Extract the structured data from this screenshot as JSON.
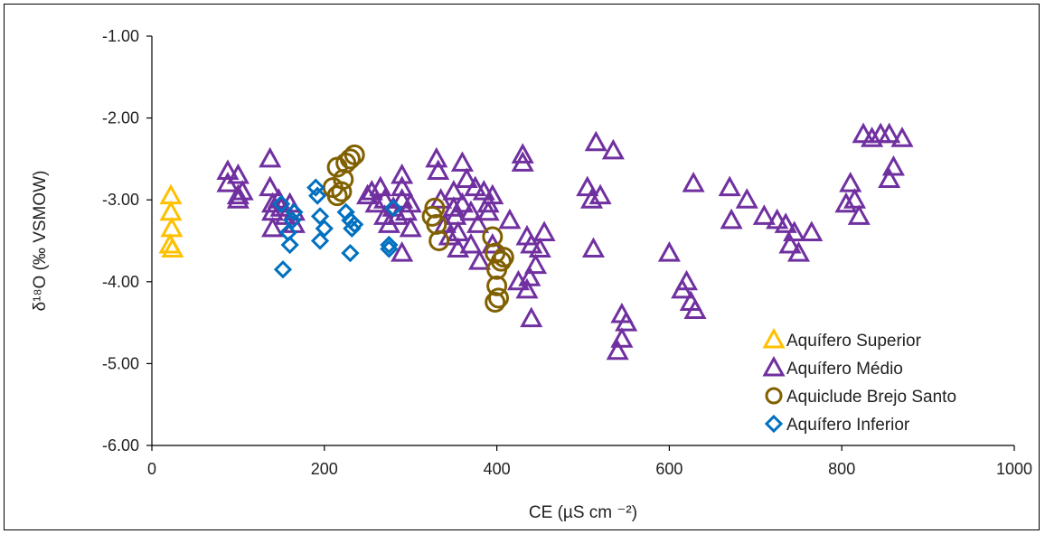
{
  "chart_data": {
    "type": "scatter",
    "xlabel": "CE (µS cm ⁻²)",
    "ylabel": "δ¹⁸O (‰ VSMOW)",
    "xlim": [
      0,
      1000
    ],
    "ylim": [
      -6,
      -1
    ],
    "xticks": [
      "0",
      "200",
      "400",
      "600",
      "800",
      "1000"
    ],
    "yticks": [
      "-1.00",
      "-2.00",
      "-3.00",
      "-4.00",
      "-5.00",
      "-6.00"
    ],
    "grid": false,
    "legend_position": "bottom-right",
    "series": [
      {
        "name": "Aquífero Superior",
        "marker": "triangle",
        "color": "#FFC000",
        "points": [
          [
            22,
            -2.95
          ],
          [
            22,
            -3.15
          ],
          [
            23,
            -3.35
          ],
          [
            21,
            -3.55
          ],
          [
            24,
            -3.6
          ]
        ]
      },
      {
        "name": "Aquífero Médio",
        "marker": "triangle",
        "color": "#7030A0",
        "points": [
          [
            88,
            -2.65
          ],
          [
            88,
            -2.8
          ],
          [
            100,
            -2.7
          ],
          [
            100,
            -2.95
          ],
          [
            100,
            -3.0
          ],
          [
            105,
            -2.9
          ],
          [
            137,
            -2.5
          ],
          [
            137,
            -2.85
          ],
          [
            140,
            -3.05
          ],
          [
            140,
            -3.15
          ],
          [
            140,
            -3.35
          ],
          [
            147,
            -3.0
          ],
          [
            150,
            -3.1
          ],
          [
            155,
            -3.2
          ],
          [
            160,
            -3.05
          ],
          [
            165,
            -3.15
          ],
          [
            165,
            -3.3
          ],
          [
            250,
            -2.95
          ],
          [
            255,
            -2.9
          ],
          [
            260,
            -3.05
          ],
          [
            265,
            -2.85
          ],
          [
            270,
            -3.0
          ],
          [
            270,
            -3.2
          ],
          [
            275,
            -3.3
          ],
          [
            280,
            -3.1
          ],
          [
            285,
            -3.2
          ],
          [
            290,
            -2.7
          ],
          [
            290,
            -2.85
          ],
          [
            290,
            -3.0
          ],
          [
            290,
            -3.65
          ],
          [
            295,
            -3.15
          ],
          [
            300,
            -3.05
          ],
          [
            300,
            -3.35
          ],
          [
            330,
            -2.5
          ],
          [
            332,
            -2.65
          ],
          [
            335,
            -3.0
          ],
          [
            340,
            -3.3
          ],
          [
            345,
            -3.45
          ],
          [
            350,
            -2.9
          ],
          [
            350,
            -3.1
          ],
          [
            352,
            -3.2
          ],
          [
            355,
            -3.4
          ],
          [
            355,
            -3.6
          ],
          [
            360,
            -2.55
          ],
          [
            360,
            -3.05
          ],
          [
            365,
            -2.75
          ],
          [
            370,
            -3.15
          ],
          [
            370,
            -3.55
          ],
          [
            375,
            -2.85
          ],
          [
            378,
            -3.3
          ],
          [
            380,
            -3.75
          ],
          [
            385,
            -2.9
          ],
          [
            390,
            -3.05
          ],
          [
            390,
            -3.15
          ],
          [
            395,
            -2.95
          ],
          [
            395,
            -3.55
          ],
          [
            415,
            -3.25
          ],
          [
            425,
            -4.0
          ],
          [
            430,
            -2.45
          ],
          [
            430,
            -2.55
          ],
          [
            435,
            -3.45
          ],
          [
            435,
            -4.1
          ],
          [
            438,
            -3.95
          ],
          [
            440,
            -3.55
          ],
          [
            440,
            -4.45
          ],
          [
            445,
            -3.8
          ],
          [
            450,
            -3.6
          ],
          [
            455,
            -3.4
          ],
          [
            505,
            -2.85
          ],
          [
            510,
            -3.0
          ],
          [
            512,
            -3.6
          ],
          [
            515,
            -2.3
          ],
          [
            520,
            -2.95
          ],
          [
            535,
            -2.4
          ],
          [
            540,
            -4.85
          ],
          [
            545,
            -4.4
          ],
          [
            545,
            -4.7
          ],
          [
            550,
            -4.5
          ],
          [
            600,
            -3.65
          ],
          [
            615,
            -4.1
          ],
          [
            620,
            -4.0
          ],
          [
            625,
            -4.25
          ],
          [
            630,
            -4.35
          ],
          [
            628,
            -2.8
          ],
          [
            670,
            -2.85
          ],
          [
            672,
            -3.25
          ],
          [
            690,
            -3.0
          ],
          [
            710,
            -3.2
          ],
          [
            725,
            -3.25
          ],
          [
            735,
            -3.3
          ],
          [
            740,
            -3.55
          ],
          [
            745,
            -3.4
          ],
          [
            750,
            -3.65
          ],
          [
            765,
            -3.4
          ],
          [
            805,
            -3.05
          ],
          [
            810,
            -2.8
          ],
          [
            815,
            -3.0
          ],
          [
            820,
            -3.2
          ],
          [
            825,
            -2.2
          ],
          [
            835,
            -2.25
          ],
          [
            845,
            -2.2
          ],
          [
            855,
            -2.2
          ],
          [
            855,
            -2.75
          ],
          [
            860,
            -2.6
          ],
          [
            870,
            -2.25
          ]
        ]
      },
      {
        "name": "Aquiclude Brejo Santo",
        "marker": "circle",
        "color": "#806000",
        "points": [
          [
            210,
            -2.85
          ],
          [
            215,
            -2.95
          ],
          [
            215,
            -2.6
          ],
          [
            220,
            -2.9
          ],
          [
            222,
            -2.75
          ],
          [
            225,
            -2.55
          ],
          [
            230,
            -2.5
          ],
          [
            235,
            -2.45
          ],
          [
            325,
            -3.2
          ],
          [
            328,
            -3.1
          ],
          [
            330,
            -3.3
          ],
          [
            333,
            -3.5
          ],
          [
            395,
            -3.45
          ],
          [
            398,
            -3.65
          ],
          [
            400,
            -3.85
          ],
          [
            400,
            -4.05
          ],
          [
            402,
            -4.2
          ],
          [
            398,
            -4.25
          ],
          [
            405,
            -3.75
          ],
          [
            408,
            -3.7
          ]
        ]
      },
      {
        "name": "Aquífero Inferior",
        "marker": "diamond",
        "color": "#0070C0",
        "points": [
          [
            150,
            -3.05
          ],
          [
            152,
            -3.85
          ],
          [
            158,
            -3.4
          ],
          [
            160,
            -3.55
          ],
          [
            163,
            -3.25
          ],
          [
            165,
            -3.15
          ],
          [
            190,
            -2.85
          ],
          [
            192,
            -2.95
          ],
          [
            195,
            -3.2
          ],
          [
            195,
            -3.5
          ],
          [
            200,
            -3.35
          ],
          [
            225,
            -3.15
          ],
          [
            230,
            -3.25
          ],
          [
            230,
            -3.65
          ],
          [
            232,
            -3.35
          ],
          [
            235,
            -3.3
          ],
          [
            275,
            -3.55
          ],
          [
            275,
            -3.6
          ],
          [
            280,
            -3.1
          ]
        ]
      }
    ]
  }
}
